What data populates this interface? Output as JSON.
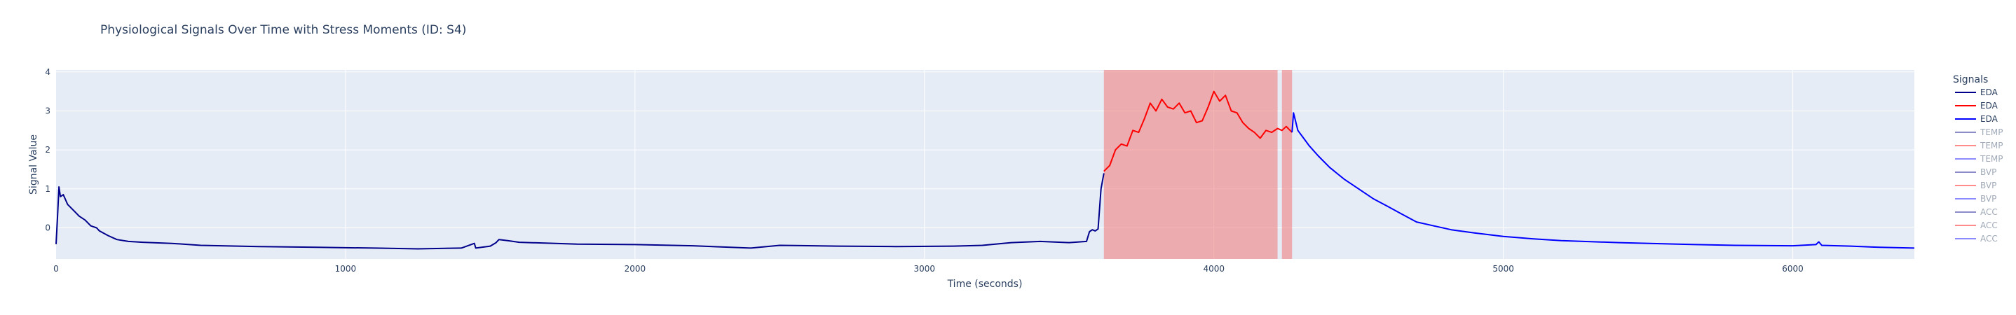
{
  "chart_data": {
    "type": "line",
    "title": "Physiological Signals Over Time with Stress Moments (ID: S4)",
    "xlabel": "Time (seconds)",
    "ylabel": "Signal Value",
    "xlim": [
      0,
      6420
    ],
    "ylim": [
      -0.8,
      4.05
    ],
    "x_ticks": [
      0,
      1000,
      2000,
      3000,
      4000,
      5000,
      6000
    ],
    "y_ticks": [
      0,
      1,
      2,
      3,
      4
    ],
    "grid": true,
    "legend_title": "Signals",
    "legend_position": "right",
    "stress_regions": [
      {
        "start": 3620,
        "end": 4220
      },
      {
        "start": 4235,
        "end": 4270
      }
    ],
    "series": [
      {
        "name": "EDA",
        "color": "#00008b",
        "points": [
          [
            0,
            -0.42
          ],
          [
            5,
            0.3
          ],
          [
            10,
            1.05
          ],
          [
            15,
            0.8
          ],
          [
            25,
            0.85
          ],
          [
            40,
            0.6
          ],
          [
            60,
            0.45
          ],
          [
            80,
            0.3
          ],
          [
            100,
            0.2
          ],
          [
            120,
            0.05
          ],
          [
            140,
            0.0
          ],
          [
            150,
            -0.08
          ],
          [
            180,
            -0.2
          ],
          [
            210,
            -0.3
          ],
          [
            250,
            -0.35
          ],
          [
            300,
            -0.37
          ],
          [
            400,
            -0.4
          ],
          [
            500,
            -0.45
          ],
          [
            700,
            -0.48
          ],
          [
            900,
            -0.5
          ],
          [
            1100,
            -0.52
          ],
          [
            1250,
            -0.54
          ],
          [
            1400,
            -0.52
          ],
          [
            1445,
            -0.4
          ],
          [
            1450,
            -0.52
          ],
          [
            1500,
            -0.47
          ],
          [
            1520,
            -0.38
          ],
          [
            1530,
            -0.3
          ],
          [
            1560,
            -0.33
          ],
          [
            1600,
            -0.37
          ],
          [
            1800,
            -0.42
          ],
          [
            2000,
            -0.43
          ],
          [
            2200,
            -0.46
          ],
          [
            2400,
            -0.52
          ],
          [
            2500,
            -0.45
          ],
          [
            2700,
            -0.47
          ],
          [
            2900,
            -0.48
          ],
          [
            3100,
            -0.47
          ],
          [
            3200,
            -0.45
          ],
          [
            3300,
            -0.38
          ],
          [
            3400,
            -0.35
          ],
          [
            3500,
            -0.38
          ],
          [
            3560,
            -0.35
          ],
          [
            3570,
            -0.1
          ],
          [
            3580,
            -0.05
          ],
          [
            3590,
            -0.08
          ],
          [
            3600,
            -0.03
          ],
          [
            3610,
            1.0
          ],
          [
            3620,
            1.4
          ]
        ]
      },
      {
        "name": "EDA",
        "color": "#ff0000",
        "points": [
          [
            3620,
            1.45
          ],
          [
            3640,
            1.6
          ],
          [
            3660,
            2.0
          ],
          [
            3680,
            2.15
          ],
          [
            3700,
            2.1
          ],
          [
            3720,
            2.5
          ],
          [
            3740,
            2.45
          ],
          [
            3760,
            2.8
          ],
          [
            3780,
            3.2
          ],
          [
            3800,
            3.0
          ],
          [
            3820,
            3.3
          ],
          [
            3840,
            3.1
          ],
          [
            3860,
            3.05
          ],
          [
            3880,
            3.2
          ],
          [
            3900,
            2.95
          ],
          [
            3920,
            3.0
          ],
          [
            3940,
            2.7
          ],
          [
            3960,
            2.75
          ],
          [
            3980,
            3.1
          ],
          [
            4000,
            3.5
          ],
          [
            4020,
            3.25
          ],
          [
            4040,
            3.4
          ],
          [
            4060,
            3.0
          ],
          [
            4080,
            2.95
          ],
          [
            4100,
            2.7
          ],
          [
            4120,
            2.55
          ],
          [
            4140,
            2.45
          ],
          [
            4160,
            2.3
          ],
          [
            4180,
            2.5
          ],
          [
            4200,
            2.45
          ],
          [
            4220,
            2.55
          ],
          [
            4235,
            2.5
          ],
          [
            4250,
            2.6
          ],
          [
            4270,
            2.45
          ]
        ]
      },
      {
        "name": "EDA",
        "color": "#0000ff",
        "points": [
          [
            4270,
            2.45
          ],
          [
            4275,
            2.95
          ],
          [
            4290,
            2.5
          ],
          [
            4310,
            2.3
          ],
          [
            4330,
            2.1
          ],
          [
            4360,
            1.85
          ],
          [
            4400,
            1.55
          ],
          [
            4450,
            1.25
          ],
          [
            4500,
            1.0
          ],
          [
            4550,
            0.75
          ],
          [
            4600,
            0.55
          ],
          [
            4650,
            0.35
          ],
          [
            4700,
            0.15
          ],
          [
            4760,
            0.05
          ],
          [
            4820,
            -0.05
          ],
          [
            4900,
            -0.13
          ],
          [
            5000,
            -0.22
          ],
          [
            5100,
            -0.28
          ],
          [
            5200,
            -0.33
          ],
          [
            5400,
            -0.38
          ],
          [
            5600,
            -0.42
          ],
          [
            5800,
            -0.45
          ],
          [
            6000,
            -0.46
          ],
          [
            6080,
            -0.43
          ],
          [
            6090,
            -0.36
          ],
          [
            6100,
            -0.45
          ],
          [
            6200,
            -0.47
          ],
          [
            6300,
            -0.5
          ],
          [
            6420,
            -0.52
          ]
        ]
      }
    ],
    "legend": [
      {
        "name": "EDA",
        "color": "#00008b",
        "muted": false
      },
      {
        "name": "EDA",
        "color": "#ff0000",
        "muted": false
      },
      {
        "name": "EDA",
        "color": "#0000ff",
        "muted": false
      },
      {
        "name": "TEMP",
        "color": "#00008b",
        "muted": true
      },
      {
        "name": "TEMP",
        "color": "#ff0000",
        "muted": true
      },
      {
        "name": "TEMP",
        "color": "#0000ff",
        "muted": true
      },
      {
        "name": "BVP",
        "color": "#00008b",
        "muted": true
      },
      {
        "name": "BVP",
        "color": "#ff0000",
        "muted": true
      },
      {
        "name": "BVP",
        "color": "#0000ff",
        "muted": true
      },
      {
        "name": "ACC",
        "color": "#00008b",
        "muted": true
      },
      {
        "name": "ACC",
        "color": "#ff0000",
        "muted": true
      },
      {
        "name": "ACC",
        "color": "#0000ff",
        "muted": true
      }
    ]
  }
}
